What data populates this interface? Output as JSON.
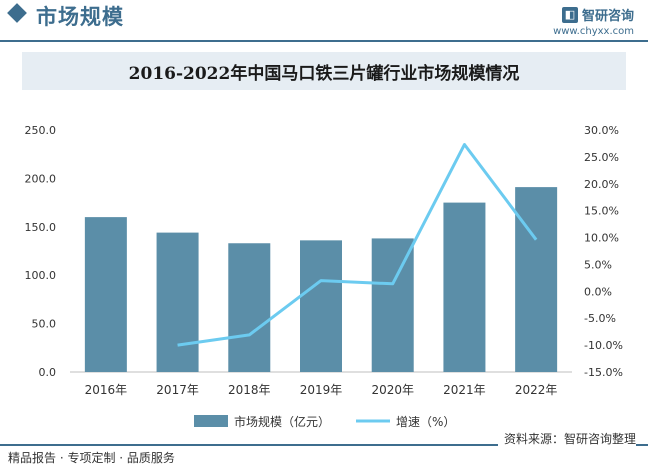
{
  "header": {
    "title": "市场规模",
    "brand_name": "智研咨询",
    "brand_url": "www.chyxx.com"
  },
  "footer": {
    "source": "资料来源：智研咨询整理",
    "tagline": "精品报告 · 专项定制 · 品质服务"
  },
  "colors": {
    "bar": "#5b8ea8",
    "line": "#6ccbf0",
    "accent": "#3d6d8e"
  },
  "chart_data": {
    "type": "bar",
    "title": "2016-2022年中国马口铁三片罐行业市场规模情况",
    "categories": [
      "2016年",
      "2017年",
      "2018年",
      "2019年",
      "2020年",
      "2021年",
      "2022年"
    ],
    "series": [
      {
        "name": "市场规模（亿元）",
        "type": "bar",
        "axis": "left",
        "values": [
          160,
          144,
          133,
          136,
          138,
          175,
          191
        ]
      },
      {
        "name": "增速（%）",
        "type": "line",
        "axis": "right",
        "values": [
          null,
          -10.0,
          -8.1,
          2.0,
          1.4,
          27.3,
          9.6
        ]
      }
    ],
    "y_left": {
      "ylim": [
        0,
        250
      ],
      "ticks": [
        "0.0",
        "50.0",
        "100.0",
        "150.0",
        "200.0",
        "250.0"
      ]
    },
    "y_right": {
      "ylim": [
        -15,
        30
      ],
      "ticks": [
        "-15.0%",
        "-10.0%",
        "-5.0%",
        "0.0%",
        "5.0%",
        "10.0%",
        "15.0%",
        "20.0%",
        "25.0%",
        "30.0%"
      ]
    },
    "grid": false,
    "legend": "bottom"
  }
}
